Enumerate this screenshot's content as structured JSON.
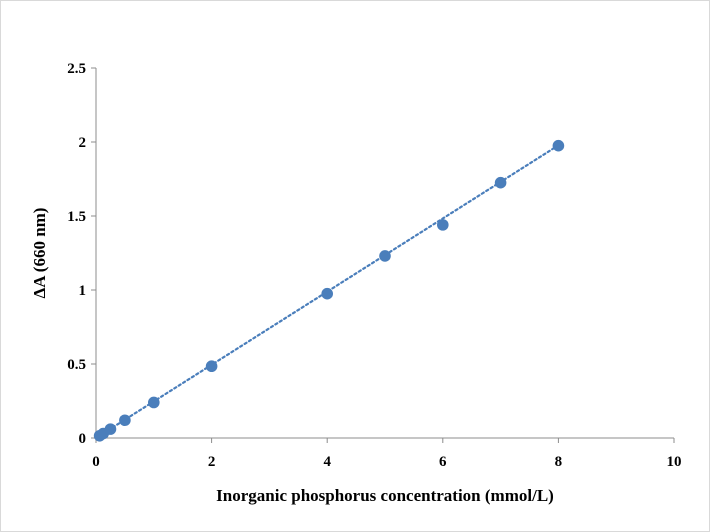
{
  "chart_data": {
    "type": "scatter",
    "title": "",
    "xlabel": "Inorganic phosphorus concentration (mmol/L)",
    "ylabel": "ΔA (660 nm)",
    "xlim": [
      0,
      10
    ],
    "ylim": [
      0,
      2.5
    ],
    "x_ticks": [
      "0",
      "2",
      "4",
      "6",
      "8",
      "10"
    ],
    "y_ticks": [
      "0",
      "0.5",
      "1",
      "1.5",
      "2",
      "2.5"
    ],
    "grid": false,
    "legend": "none",
    "series": [
      {
        "color": "#4a7ebb",
        "trendline": "linear dotted",
        "x": [
          0.0625,
          0.125,
          0.25,
          0.5,
          1,
          2,
          4,
          5,
          6,
          7,
          8
        ],
        "y": [
          0.015,
          0.03,
          0.06,
          0.12,
          0.24,
          0.485,
          0.975,
          1.23,
          1.44,
          1.725,
          1.975
        ]
      }
    ],
    "trendline_fit": {
      "slope": 0.2472,
      "intercept": 0.0
    }
  }
}
